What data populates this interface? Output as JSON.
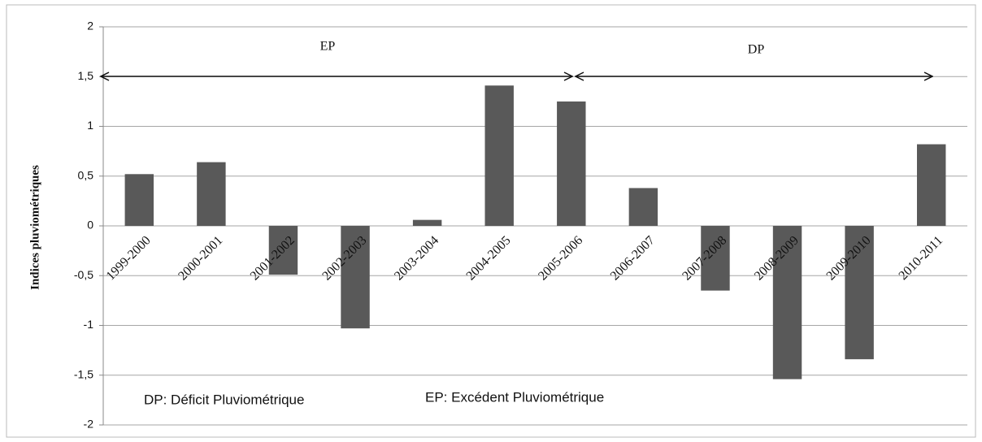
{
  "chart_data": {
    "type": "bar",
    "y_label": "Indices pluviométriques",
    "categories": [
      "1999-2000",
      "2000-2001",
      "2001-2002",
      "2002-2003",
      "2003-2004",
      "2004-2005",
      "2005-2006",
      "2006-2007",
      "2007-2008",
      "2008-2009",
      "2009-2010",
      "2010-2011"
    ],
    "values": [
      0.52,
      0.64,
      -0.49,
      -1.03,
      0.06,
      1.41,
      1.25,
      0.38,
      -0.65,
      -1.54,
      -1.34,
      0.82
    ],
    "color": "#595959",
    "ylim": [
      -2,
      2
    ],
    "yticks": [
      -2,
      {
        "value": -1.5,
        "label": "-1,5"
      },
      -1,
      {
        "value": -0.5,
        "label": "-0,5"
      },
      0,
      {
        "value": 0.5,
        "label": "0,5"
      },
      1,
      {
        "value": 1.5,
        "label": "1,5"
      },
      2
    ],
    "grid": true,
    "annotations": [
      "EP",
      "DP",
      "DP: Déficit Pluviométrique",
      "EP: Excédent Pluviométrique"
    ]
  }
}
